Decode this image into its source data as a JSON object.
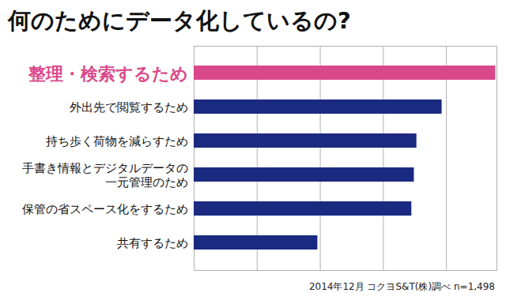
{
  "chart_data": {
    "type": "bar",
    "orientation": "horizontal",
    "title": "何のためにデータ化しているの?",
    "caption": "2014年12月 コクヨS&T(株)調べ n=1,498",
    "categories": [
      "整理・検索するため",
      "外出先で閲覧するため",
      "持ち歩く荷物を減らすため",
      "手書き情報とデジタルデータの一元管理のため",
      "保管の省スペース化をするため",
      "共有するため"
    ],
    "values": [
      47.8,
      39.3,
      35.3,
      34.9,
      34.5,
      19.6
    ],
    "colors": [
      "#d9498a",
      "#1a2a80",
      "#1a2a80",
      "#1a2a80",
      "#1a2a80",
      "#1a2a80"
    ],
    "xlim": [
      0,
      48
    ],
    "xticks": [
      0,
      10,
      20,
      30,
      40
    ],
    "grid": true,
    "tick_labels": false
  }
}
